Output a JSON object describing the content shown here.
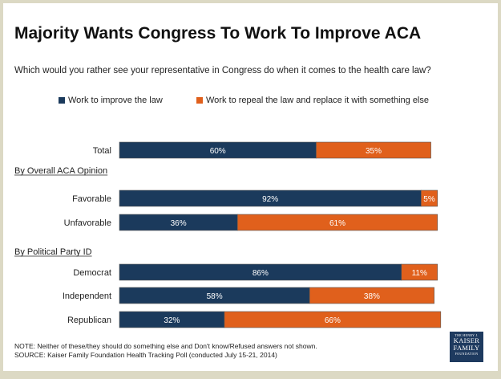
{
  "title": "Majority Wants Congress To Work To Improve ACA",
  "subtitle": "Which would you rather see your representative in Congress do when it comes to the health care law?",
  "colors": {
    "improve": "#1b3a5c",
    "repeal": "#e0601c"
  },
  "note": "NOTE: Neither of these/they should do something else and Don't know/Refused answers not shown.",
  "source": "SOURCE: Kaiser Family Foundation Health Tracking Poll (conducted July 15-21, 2014)",
  "logo": {
    "line1": "THE HENRY J.",
    "line2": "KAISER",
    "line3": "FAMILY",
    "line4": "FOUNDATION"
  },
  "chart_data": {
    "type": "bar",
    "orientation": "horizontal",
    "stacked": true,
    "xlim": [
      0,
      100
    ],
    "legend_position": "top",
    "series": [
      {
        "name": "Work to improve the law",
        "color": "#1b3a5c"
      },
      {
        "name": "Work to repeal the law and replace it with something else",
        "color": "#e0601c"
      }
    ],
    "groups": [
      {
        "label": "",
        "rows": [
          {
            "category": "Total",
            "values": [
              60,
              35
            ],
            "labels": [
              "60%",
              "35%"
            ]
          }
        ]
      },
      {
        "label": "By Overall ACA Opinion",
        "rows": [
          {
            "category": "Favorable",
            "values": [
              92,
              5
            ],
            "labels": [
              "92%",
              "5%"
            ]
          },
          {
            "category": "Unfavorable",
            "values": [
              36,
              61
            ],
            "labels": [
              "36%",
              "61%"
            ]
          }
        ]
      },
      {
        "label": "By Political Party ID",
        "rows": [
          {
            "category": "Democrat",
            "values": [
              86,
              11
            ],
            "labels": [
              "86%",
              "11%"
            ]
          },
          {
            "category": "Independent",
            "values": [
              58,
              38
            ],
            "labels": [
              "58%",
              "38%"
            ]
          },
          {
            "category": "Republican",
            "values": [
              32,
              66
            ],
            "labels": [
              "32%",
              "66%"
            ]
          }
        ]
      }
    ]
  }
}
